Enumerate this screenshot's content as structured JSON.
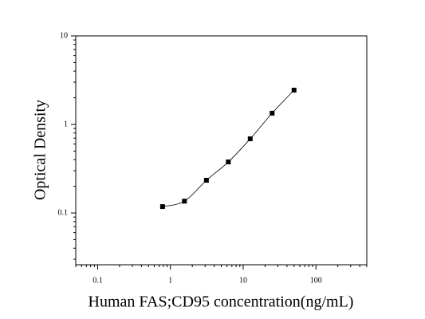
{
  "chart_data": {
    "type": "scatter",
    "x_label": "Human FAS;CD95 concentration(ng/mL)",
    "y_label": "Optical Density",
    "x": [
      0.78,
      1.56,
      3.125,
      6.25,
      12.5,
      25,
      50
    ],
    "series": [
      {
        "values": [
          0.118,
          0.136,
          0.234,
          0.377,
          0.688,
          1.34,
          2.44
        ],
        "color": "#000000"
      }
    ],
    "xlim": [
      0.05,
      500
    ],
    "ylim": [
      0.026,
      10
    ],
    "xticks": [
      0.1,
      1,
      10,
      100
    ],
    "yticks": [
      0.1,
      1,
      10
    ],
    "xscale": "log",
    "yscale": "log",
    "fit_curve": true
  }
}
